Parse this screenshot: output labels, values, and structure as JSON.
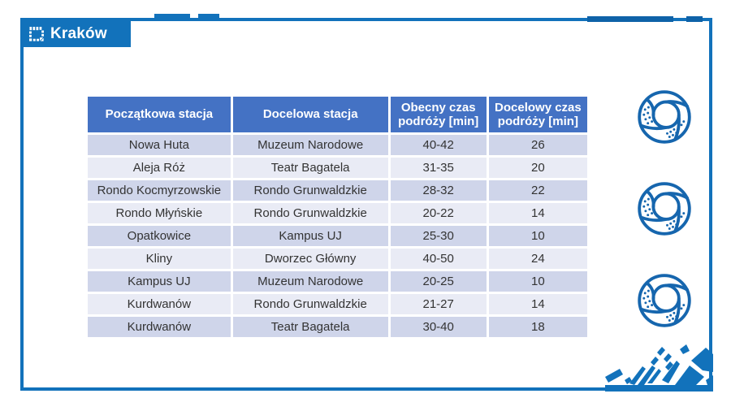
{
  "slide": {
    "title": "Kraków"
  },
  "table": {
    "headers": [
      "Początkowa stacja",
      "Docelowa stacja",
      "Obecny czas podróży [min]",
      "Docelowy czas podróży [min]"
    ],
    "rows": [
      [
        "Nowa Huta",
        "Muzeum Narodowe",
        "40-42",
        "26"
      ],
      [
        "Aleja Róż",
        "Teatr Bagatela",
        "31-35",
        "20"
      ],
      [
        "Rondo Kocmyrzowskie",
        "Rondo Grunwaldzkie",
        "28-32",
        "22"
      ],
      [
        "Rondo Młyńskie",
        "Rondo Grunwaldzkie",
        "20-22",
        "14"
      ],
      [
        "Opatkowice",
        "Kampus UJ",
        "25-30",
        "10"
      ],
      [
        "Kliny",
        "Dworzec Główny",
        "40-50",
        "24"
      ],
      [
        "Kampus UJ",
        "Muzeum Narodowe",
        "20-25",
        "10"
      ],
      [
        "Kurdwanów",
        "Rondo Grunwaldzkie",
        "21-27",
        "14"
      ],
      [
        "Kurdwanów",
        "Teatr Bagatela",
        "30-40",
        "18"
      ]
    ]
  },
  "decorations": {
    "logo_icon": "krakow-dashed-square-icon",
    "right_icons": [
      "obwarzanek-icon",
      "obwarzanek-icon",
      "obwarzanek-icon"
    ],
    "corner_motif": "city-map-mosaic"
  },
  "colors": {
    "frame_blue": "#1272BB",
    "header_blue": "#4472C4",
    "row_dark": "#CFD5EA",
    "row_light": "#E9EBF5",
    "icon_blue": "#1666AE",
    "text_dark": "#333333"
  }
}
